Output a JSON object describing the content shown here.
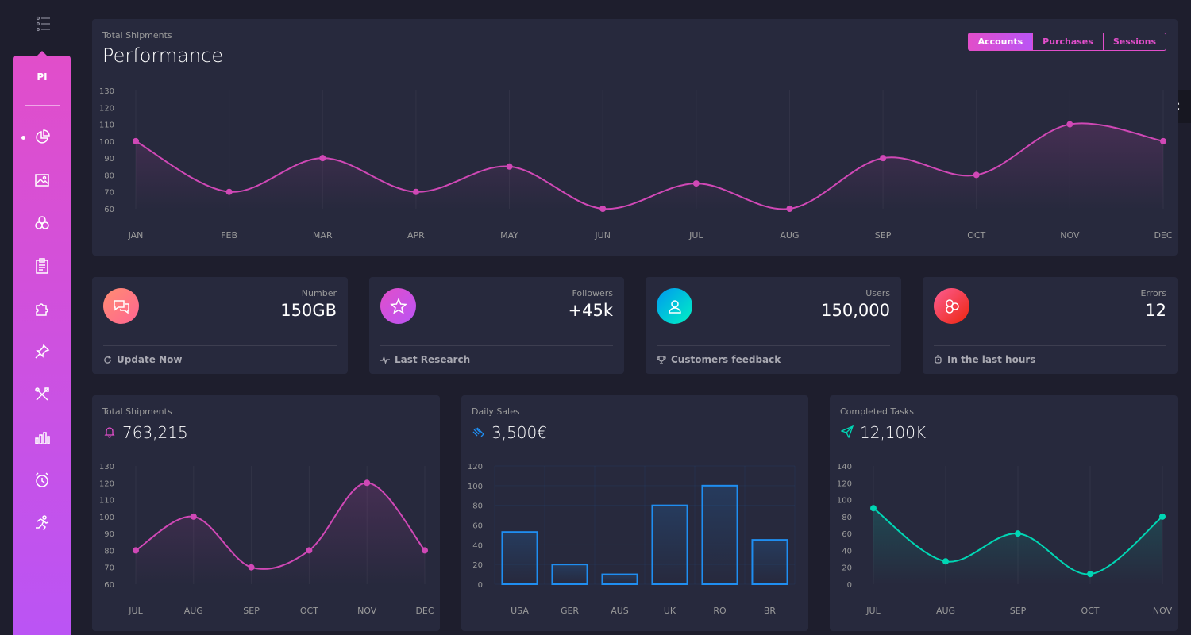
{
  "sidebar": {
    "logo": "PI",
    "items": [
      {
        "name": "dashboard"
      },
      {
        "name": "image"
      },
      {
        "name": "atom"
      },
      {
        "name": "clipboard"
      },
      {
        "name": "puzzle"
      },
      {
        "name": "pin"
      },
      {
        "name": "tools"
      },
      {
        "name": "chart-bars"
      },
      {
        "name": "alarm"
      },
      {
        "name": "runner"
      }
    ]
  },
  "performance": {
    "category": "Total Shipments",
    "title": "Performance",
    "tabs": [
      "Accounts",
      "Purchases",
      "Sessions"
    ],
    "active_tab": "Accounts"
  },
  "stats": [
    {
      "label": "Number",
      "value": "150GB",
      "footer": "Update Now",
      "icon": "chat-icon",
      "color": "#ff6491"
    },
    {
      "label": "Followers",
      "value": "+45k",
      "footer": "Last Research",
      "icon": "star-icon",
      "color": "#e14eca"
    },
    {
      "label": "Users",
      "value": "150,000",
      "footer": "Customers feedback",
      "icon": "user-icon",
      "color": "#00f2c3"
    },
    {
      "label": "Errors",
      "value": "12",
      "footer": "In the last hours",
      "icon": "molecule-icon",
      "color": "#fd5d93"
    }
  ],
  "shipments": {
    "category": "Total Shipments",
    "value": "763,215"
  },
  "sales": {
    "category": "Daily Sales",
    "value": "3,500€"
  },
  "tasks": {
    "category": "Completed Tasks",
    "value": "12,100K"
  },
  "chart_data": [
    {
      "type": "line",
      "title": "Performance",
      "categories": [
        "JAN",
        "FEB",
        "MAR",
        "APR",
        "MAY",
        "JUN",
        "JUL",
        "AUG",
        "SEP",
        "OCT",
        "NOV",
        "DEC"
      ],
      "values": [
        100,
        70,
        90,
        70,
        85,
        60,
        75,
        60,
        90,
        80,
        110,
        100
      ],
      "yticks": [
        60,
        70,
        80,
        90,
        100,
        110,
        120,
        130
      ],
      "ylim": [
        60,
        130
      ],
      "color": "#d048b6"
    },
    {
      "type": "line",
      "title": "Total Shipments",
      "categories": [
        "JUL",
        "AUG",
        "SEP",
        "OCT",
        "NOV",
        "DEC"
      ],
      "values": [
        80,
        100,
        70,
        80,
        120,
        80
      ],
      "yticks": [
        60,
        70,
        80,
        90,
        100,
        110,
        120,
        130
      ],
      "ylim": [
        60,
        130
      ],
      "color": "#d048b6"
    },
    {
      "type": "bar",
      "title": "Daily Sales",
      "categories": [
        "USA",
        "GER",
        "AUS",
        "UK",
        "RO",
        "BR"
      ],
      "values": [
        53,
        20,
        10,
        80,
        100,
        45
      ],
      "yticks": [
        0,
        20,
        40,
        60,
        80,
        100,
        120
      ],
      "ylim": [
        0,
        120
      ],
      "color": "#1f8ef1"
    },
    {
      "type": "line",
      "title": "Completed Tasks",
      "categories": [
        "JUL",
        "AUG",
        "SEP",
        "OCT",
        "NOV"
      ],
      "values": [
        90,
        27,
        60,
        12,
        80
      ],
      "yticks": [
        0,
        20,
        40,
        60,
        80,
        100,
        120,
        140
      ],
      "ylim": [
        0,
        140
      ],
      "color": "#00d6b4"
    }
  ]
}
